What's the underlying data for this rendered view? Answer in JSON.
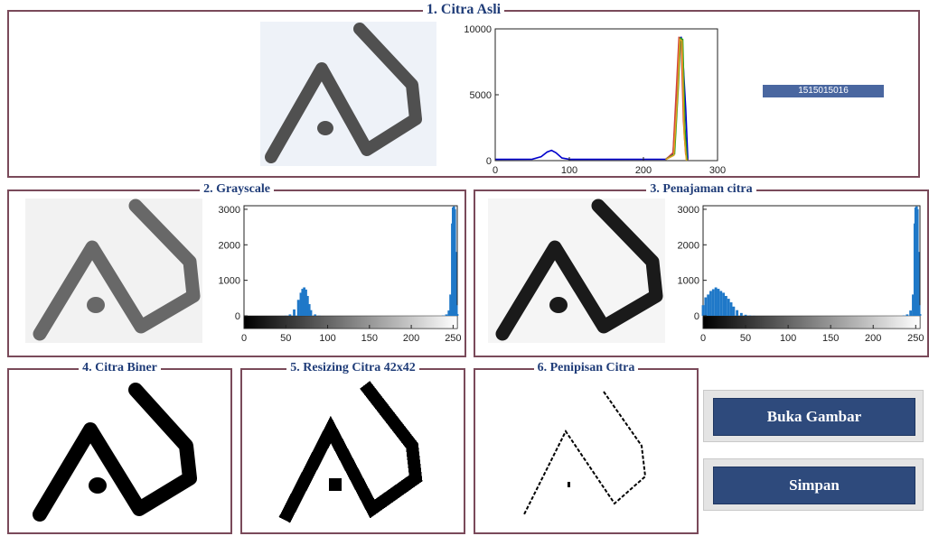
{
  "panels": {
    "original": {
      "title": "1. Citra Asli"
    },
    "grayscale": {
      "title": "2. Grayscale"
    },
    "sharpen": {
      "title": "3. Penajaman citra"
    },
    "binary": {
      "title": "4. Citra Biner"
    },
    "resize": {
      "title": "5. Resizing Citra 42x42"
    },
    "thinning": {
      "title": "6. Penipisan Citra"
    }
  },
  "id_label": "1515015016",
  "buttons": {
    "open": "Buka Gambar",
    "save": "Simpan"
  },
  "chart_data": [
    {
      "type": "line",
      "ylim": [
        0,
        10000
      ],
      "xlim": [
        0,
        300
      ],
      "yticks": [
        0,
        5000,
        10000
      ],
      "xticks": [
        0,
        100,
        200,
        300
      ],
      "series": [
        {
          "color": "#0000cc",
          "x": [
            0,
            50,
            62,
            70,
            76,
            82,
            90,
            100,
            230,
            240,
            245,
            248,
            251,
            254,
            257,
            260
          ],
          "y": [
            100,
            110,
            300,
            650,
            780,
            600,
            200,
            100,
            110,
            500,
            5000,
            9000,
            9400,
            7000,
            4000,
            0
          ]
        },
        {
          "color": "#d04040",
          "x": [
            230,
            240,
            245,
            248,
            251,
            254,
            257,
            260
          ],
          "y": [
            80,
            600,
            6000,
            9400,
            9000,
            3000,
            500,
            0
          ]
        },
        {
          "color": "#20a020",
          "x": [
            230,
            242,
            247,
            250,
            253,
            256,
            259
          ],
          "y": [
            80,
            500,
            5500,
            9300,
            9200,
            2500,
            0
          ]
        },
        {
          "color": "#e0a020",
          "x": [
            230,
            241,
            246,
            249,
            252,
            255,
            258
          ],
          "y": [
            80,
            400,
            5000,
            9200,
            9100,
            2000,
            0
          ]
        }
      ]
    },
    {
      "type": "bar",
      "ylim": [
        0,
        3100
      ],
      "xlim": [
        0,
        255
      ],
      "yticks": [
        0,
        1000,
        2000,
        3000
      ],
      "xticks": [
        0,
        50,
        100,
        150,
        200,
        250
      ],
      "color": "#1f78c8",
      "x": [
        50,
        55,
        60,
        65,
        68,
        70,
        72,
        74,
        76,
        78,
        80,
        85,
        90,
        238,
        242,
        245,
        247,
        249,
        250,
        251,
        252,
        253,
        254,
        255
      ],
      "y": [
        5,
        40,
        180,
        450,
        650,
        760,
        800,
        740,
        560,
        330,
        160,
        40,
        5,
        10,
        40,
        150,
        600,
        2600,
        3050,
        3080,
        3000,
        1800,
        300,
        50
      ]
    },
    {
      "type": "bar",
      "ylim": [
        0,
        3100
      ],
      "xlim": [
        0,
        255
      ],
      "yticks": [
        0,
        1000,
        2000,
        3000
      ],
      "xticks": [
        0,
        50,
        100,
        150,
        200,
        250
      ],
      "color": "#1f78c8",
      "x": [
        0,
        3,
        6,
        9,
        12,
        15,
        18,
        21,
        24,
        27,
        30,
        33,
        36,
        40,
        45,
        50,
        55,
        60,
        236,
        240,
        244,
        247,
        249,
        250,
        251,
        252,
        253,
        254,
        255
      ],
      "y": [
        300,
        520,
        600,
        700,
        750,
        800,
        760,
        700,
        650,
        560,
        480,
        380,
        260,
        160,
        80,
        30,
        10,
        3,
        10,
        40,
        150,
        600,
        2600,
        3050,
        3080,
        3000,
        1800,
        300,
        50
      ]
    }
  ]
}
